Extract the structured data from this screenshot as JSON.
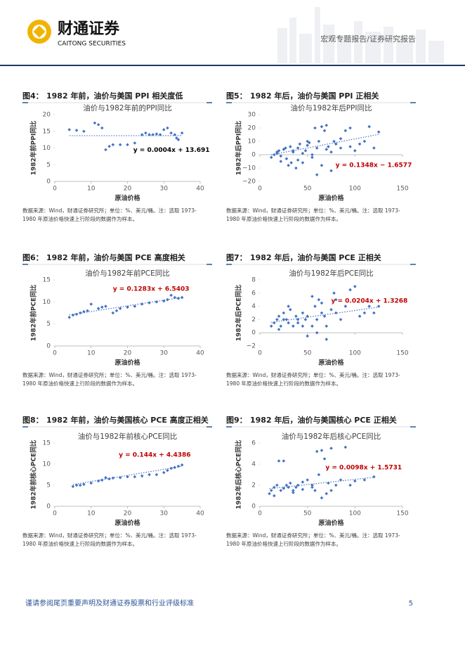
{
  "header": {
    "logo_cn": "财通证券",
    "logo_en": "CAITONG SECURITIES",
    "report_type": "宏观专题报告/证券研究报告"
  },
  "figures": [
    {
      "label": "图4：",
      "title": "1982 年前，油价与美国 PPI 相关度低",
      "source": [
        "数据来源：Wind，财通证券研究所；单位：%、美元/桶。注：选取 1973-",
        "1980 年原油价格快速上行阶段的数据作为样本。"
      ],
      "chart": {
        "type": "scatter",
        "title": "油价与1982年前的PPI同比",
        "xlabel": "原油价格",
        "ylabel": "1982年前PPI同比",
        "color": "#4472c4",
        "xlim": [
          0,
          40
        ],
        "xticks": [
          0,
          10,
          20,
          30,
          40
        ],
        "ylim": [
          0,
          20
        ],
        "yticks": [
          0,
          5,
          10,
          15,
          20
        ],
        "x": [
          4,
          6,
          8,
          11,
          12,
          13,
          14,
          15,
          16,
          18,
          20,
          22,
          24,
          25,
          26,
          27,
          28,
          29,
          30,
          31,
          32,
          33,
          33.5,
          34,
          35
        ],
        "y": [
          15.5,
          15.3,
          15,
          17.5,
          17,
          16,
          9.5,
          10.5,
          11,
          11,
          11,
          11.5,
          14,
          14.5,
          14,
          14,
          14.2,
          14,
          15.5,
          16,
          14.5,
          14,
          13,
          12.5,
          14.5
        ],
        "trendline": {
          "slope": 0.0004,
          "intercept": 13.691,
          "label": "y = 0.0004x + 13.691",
          "color": "#000000"
        }
      }
    },
    {
      "label": "图5：",
      "title": "1982 年后，油价与美国 PPI 正相关",
      "source": [
        "数据来源：Wind，财通证券研究所；单位：%、美元/桶。注：选取 1973-",
        "1980 年原油价格快速上行阶段的数据作为样本。"
      ],
      "chart": {
        "type": "scatter",
        "title": "油价与1982年后PPI同比",
        "xlabel": "原油价格",
        "ylabel": "1982年后PPI同比",
        "color": "#4472c4",
        "xlim": [
          0,
          150
        ],
        "xticks": [
          0,
          50,
          100,
          150
        ],
        "ylim": [
          -20,
          30
        ],
        "yticks": [
          {
            "value": -20,
            "label": "−20"
          },
          {
            "value": -10,
            "label": "−10"
          },
          0,
          10,
          20,
          30
        ],
        "x": [
          12,
          15,
          18,
          20,
          22,
          25,
          27,
          30,
          32,
          35,
          38,
          40,
          42,
          45,
          48,
          50,
          52,
          55,
          58,
          60,
          62,
          65,
          68,
          70,
          72,
          75,
          78,
          80,
          85,
          90,
          95,
          100,
          105,
          110,
          115,
          120,
          125,
          28,
          33,
          40,
          45,
          55,
          60,
          65,
          18,
          22,
          35,
          50,
          70,
          75,
          85,
          95
        ],
        "y": [
          -2,
          0,
          2,
          3,
          -5,
          4,
          5,
          -8,
          6,
          2,
          -10,
          5,
          8,
          -6,
          3,
          7,
          9,
          0,
          20,
          -15,
          10,
          21,
          18,
          22,
          6,
          -12,
          10,
          8,
          5,
          18,
          20,
          3,
          8,
          10,
          21,
          5,
          17,
          -3,
          -6,
          -4,
          1,
          -2,
          5,
          -8,
          1,
          -1,
          3,
          10,
          4,
          2,
          12,
          6
        ],
        "trendline": {
          "slope": 0.1348,
          "intercept": -1.6577,
          "label": "y = 0.1348x − 1.6577",
          "color": "#c00000"
        }
      }
    },
    {
      "label": "图6：",
      "title": "1982 年前，油价与美国 PCE 高度相关",
      "source": [
        "数据来源：Wind，财通证券研究所；单位：%、美元/桶。注：选取 1973-",
        "1980 年原油价格快速上行阶段的数据作为样本。"
      ],
      "chart": {
        "type": "scatter",
        "title": "油价与1982年前PCE同比",
        "xlabel": "原油价格",
        "ylabel": "1982年前PCE同比",
        "color": "#4472c4",
        "xlim": [
          0,
          40
        ],
        "xticks": [
          0,
          10,
          20,
          30,
          40
        ],
        "ylim": [
          0,
          15
        ],
        "yticks": [
          0,
          5,
          10,
          15
        ],
        "x": [
          4,
          5,
          6,
          7,
          8,
          9,
          10,
          12,
          13,
          14,
          16,
          17,
          18,
          20,
          22,
          24,
          26,
          28,
          30,
          31,
          32,
          33,
          34,
          35
        ],
        "y": [
          6.5,
          7,
          7.2,
          7.5,
          7.8,
          8,
          9.5,
          8.5,
          8.8,
          9,
          7.5,
          8,
          8.5,
          8.8,
          9,
          9.5,
          9.8,
          10,
          10.2,
          10.5,
          11.5,
          11,
          10.8,
          11
        ],
        "trendline": {
          "slope": 0.1283,
          "intercept": 6.5403,
          "label": "y = 0.1283x + 6.5403",
          "color": "#c00000"
        }
      }
    },
    {
      "label": "图7：",
      "title": "1982 年后，油价与美国 PCE 正相关",
      "source": [
        "数据来源：Wind，财通证券研究所；单位：%、美元/桶。注：选取 1973-",
        "1980 年原油价格快速上行阶段的数据作为样本。"
      ],
      "chart": {
        "type": "scatter",
        "title": "油价与1982年后PCE同比",
        "xlabel": "原油价格",
        "ylabel": "1982年后PCE同比",
        "color": "#4472c4",
        "xlim": [
          0,
          150
        ],
        "xticks": [
          0,
          50,
          100,
          150
        ],
        "ylim": [
          -2,
          8
        ],
        "yticks": [
          {
            "value": -2,
            "label": "−2"
          },
          0,
          2,
          4,
          6,
          8
        ],
        "x": [
          12,
          15,
          18,
          20,
          22,
          25,
          28,
          30,
          32,
          35,
          38,
          40,
          45,
          48,
          50,
          55,
          58,
          60,
          62,
          65,
          68,
          70,
          75,
          78,
          80,
          85,
          90,
          95,
          100,
          105,
          110,
          115,
          120,
          125,
          20,
          30,
          40,
          50,
          60,
          70,
          80,
          25,
          45,
          55,
          65
        ],
        "y": [
          1,
          1.5,
          2,
          2.5,
          1,
          3,
          2,
          4,
          3.5,
          1,
          2.5,
          1.5,
          3,
          2,
          -0.5,
          1,
          4,
          2,
          5,
          3,
          2.5,
          -1,
          3.5,
          6,
          5,
          2,
          4,
          6.5,
          7,
          2.5,
          3,
          4,
          3,
          4,
          0.5,
          1.5,
          2,
          2.5,
          0,
          1,
          3,
          2,
          1,
          5.5,
          4.5
        ],
        "trendline": {
          "slope": 0.0204,
          "intercept": 1.3268,
          "label": "y = 0.0204x + 1.3268",
          "color": "#c00000"
        }
      }
    },
    {
      "label": "图8：",
      "title": "1982 年前，油价与美国核心 PCE 高度正相关",
      "source": [
        "数据来源：Wind，财通证券研究所；单位：%、美元/桶。注：选取 1973-",
        "1980 年原油价格快速上行阶段的数据作为样本。"
      ],
      "chart": {
        "type": "scatter",
        "title": "油价与1982年前核心PCE同比",
        "xlabel": "原油价格",
        "ylabel": "1982年前核心PCE同比",
        "color": "#4472c4",
        "xlim": [
          0,
          40
        ],
        "xticks": [
          0,
          10,
          20,
          30,
          40
        ],
        "ylim": [
          0,
          15
        ],
        "yticks": [
          0,
          5,
          10,
          15
        ],
        "x": [
          5,
          6,
          7,
          8,
          10,
          12,
          13,
          14,
          15,
          16,
          18,
          20,
          22,
          24,
          26,
          28,
          30,
          31,
          32,
          33,
          34,
          35
        ],
        "y": [
          4.7,
          5,
          5,
          5.2,
          5.5,
          6,
          6.2,
          6.8,
          6.5,
          6.7,
          6.8,
          7,
          7,
          7.2,
          7.5,
          7.5,
          8,
          8.5,
          9,
          9.2,
          9.5,
          9.8
        ],
        "trendline": {
          "slope": 0.144,
          "intercept": 4.4386,
          "label": "y = 0.144x + 4.4386",
          "color": "#c00000"
        }
      }
    },
    {
      "label": "图9：",
      "title": "1982 年后，油价与美国核心 PCE 正相关",
      "source": [
        "数据来源：Wind，财通证券研究所；单位：%、美元/桶。注：选取 1973-",
        "1980 年原油价格快速上行阶段的数据作为样本。"
      ],
      "chart": {
        "type": "scatter",
        "title": "油价与1982年后核心PCE同比",
        "xlabel": "原油价格",
        "ylabel": "1982年后核心PCE同比",
        "color": "#4472c4",
        "xlim": [
          0,
          150
        ],
        "xticks": [
          0,
          50,
          100,
          150
        ],
        "ylim": [
          0,
          6
        ],
        "yticks": [
          0,
          2,
          4,
          6
        ],
        "x": [
          10,
          12,
          15,
          18,
          20,
          22,
          25,
          28,
          30,
          32,
          35,
          38,
          40,
          45,
          50,
          55,
          58,
          60,
          62,
          65,
          68,
          70,
          72,
          75,
          80,
          85,
          90,
          95,
          100,
          110,
          120,
          15,
          25,
          35,
          45,
          55,
          65,
          75
        ],
        "y": [
          1.2,
          1.5,
          1.8,
          2,
          4.3,
          1.5,
          4.3,
          2,
          1.8,
          2.2,
          1.5,
          1.8,
          2,
          1.6,
          2.5,
          2,
          1.5,
          5.2,
          3,
          5.3,
          4.5,
          1.2,
          2.2,
          5.5,
          2,
          2.5,
          5.6,
          2,
          2.4,
          2.5,
          2.8,
          1,
          1.7,
          1.3,
          2.3,
          1.8,
          0.8,
          1.5
        ],
        "trendline": {
          "slope": 0.0098,
          "intercept": 1.5731,
          "label": "y = 0.0098x + 1.5731",
          "color": "#c00000"
        }
      }
    }
  ],
  "footer": {
    "disclaimer": "谨请参阅尾页重要声明及财通证券股票和行业评级标准",
    "page": 5
  }
}
